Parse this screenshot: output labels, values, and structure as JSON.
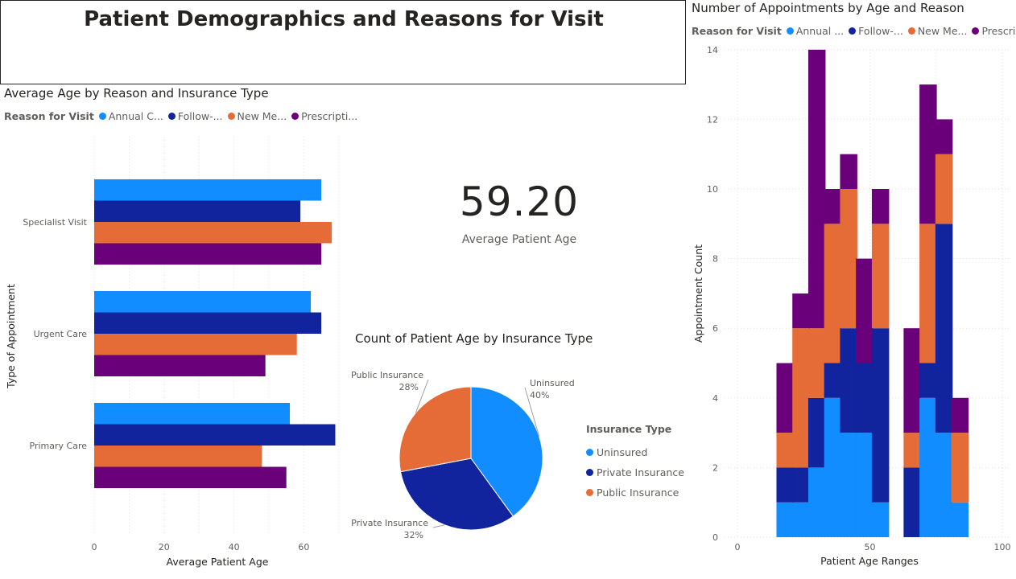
{
  "page": {
    "title": "Patient Demographics and Reasons for Visit"
  },
  "colors": {
    "annual": "#118DFF",
    "follow": "#12239E",
    "newmed": "#E66C37",
    "prescription": "#6B007B",
    "grid": "#e1dfdd",
    "axis_text": "#605e5c"
  },
  "legend_reason": {
    "title": "Reason for Visit",
    "items_left": [
      "Annual C...",
      "Follow-...",
      "New Me...",
      "Prescripti..."
    ],
    "items_right": [
      "Annual ...",
      "Follow-...",
      "New Me...",
      "Prescrip..."
    ]
  },
  "kpi": {
    "value": "59.20",
    "label": "Average Patient Age"
  },
  "chart_data": [
    {
      "type": "bar",
      "orientation": "horizontal",
      "title": "Average Age by Reason and Insurance Type",
      "xlabel": "Average Patient Age",
      "ylabel": "Type of Appointment",
      "categories": [
        "Specialist Visit",
        "Urgent Care",
        "Primary Care"
      ],
      "xlim": [
        0,
        70
      ],
      "xticks": [
        0,
        20,
        40,
        60
      ],
      "grid": true,
      "legend_position": "top-left",
      "series": [
        {
          "name": "Annual C...",
          "values": [
            65,
            62,
            56
          ]
        },
        {
          "name": "Follow-...",
          "values": [
            59,
            65,
            69
          ]
        },
        {
          "name": "New Me...",
          "values": [
            68,
            58,
            48
          ]
        },
        {
          "name": "Prescripti...",
          "values": [
            65,
            49,
            55
          ]
        }
      ]
    },
    {
      "type": "pie",
      "title": "Count of Patient Age by Insurance Type",
      "legend_title": "Insurance Type",
      "legend_position": "right",
      "slices": [
        {
          "name": "Uninsured",
          "percent": "40%",
          "value": 40
        },
        {
          "name": "Private Insurance",
          "percent": "32%",
          "value": 32
        },
        {
          "name": "Public Insurance",
          "percent": "28%",
          "value": 28
        }
      ]
    },
    {
      "type": "bar",
      "stacked": true,
      "title": "Number of Appointments by Age and Reason",
      "xlabel": "Patient Age Ranges",
      "ylabel": "Appointment Count",
      "x": [
        18,
        24,
        30,
        36,
        42,
        48,
        54,
        60,
        66,
        72,
        78,
        84,
        90
      ],
      "xlim": [
        0,
        100
      ],
      "xticks": [
        0,
        50,
        100
      ],
      "ylim": [
        0,
        14
      ],
      "yticks": [
        0,
        2,
        4,
        6,
        8,
        10,
        12,
        14
      ],
      "grid": true,
      "legend_position": "top-left",
      "series": [
        {
          "name": "Annual ...",
          "values": [
            1,
            1,
            2,
            4,
            3,
            3,
            1,
            0,
            0,
            4,
            3,
            1,
            0
          ]
        },
        {
          "name": "Follow-...",
          "values": [
            1,
            1,
            2,
            1,
            3,
            2,
            5,
            0,
            2,
            1,
            6,
            0,
            0
          ]
        },
        {
          "name": "New Me...",
          "values": [
            1,
            4,
            2,
            4,
            4,
            0,
            3,
            0,
            1,
            4,
            2,
            2,
            0
          ]
        },
        {
          "name": "Prescrip...",
          "values": [
            2,
            1,
            8,
            1,
            1,
            3,
            1,
            0,
            3,
            4,
            1,
            1,
            0
          ]
        }
      ]
    }
  ]
}
